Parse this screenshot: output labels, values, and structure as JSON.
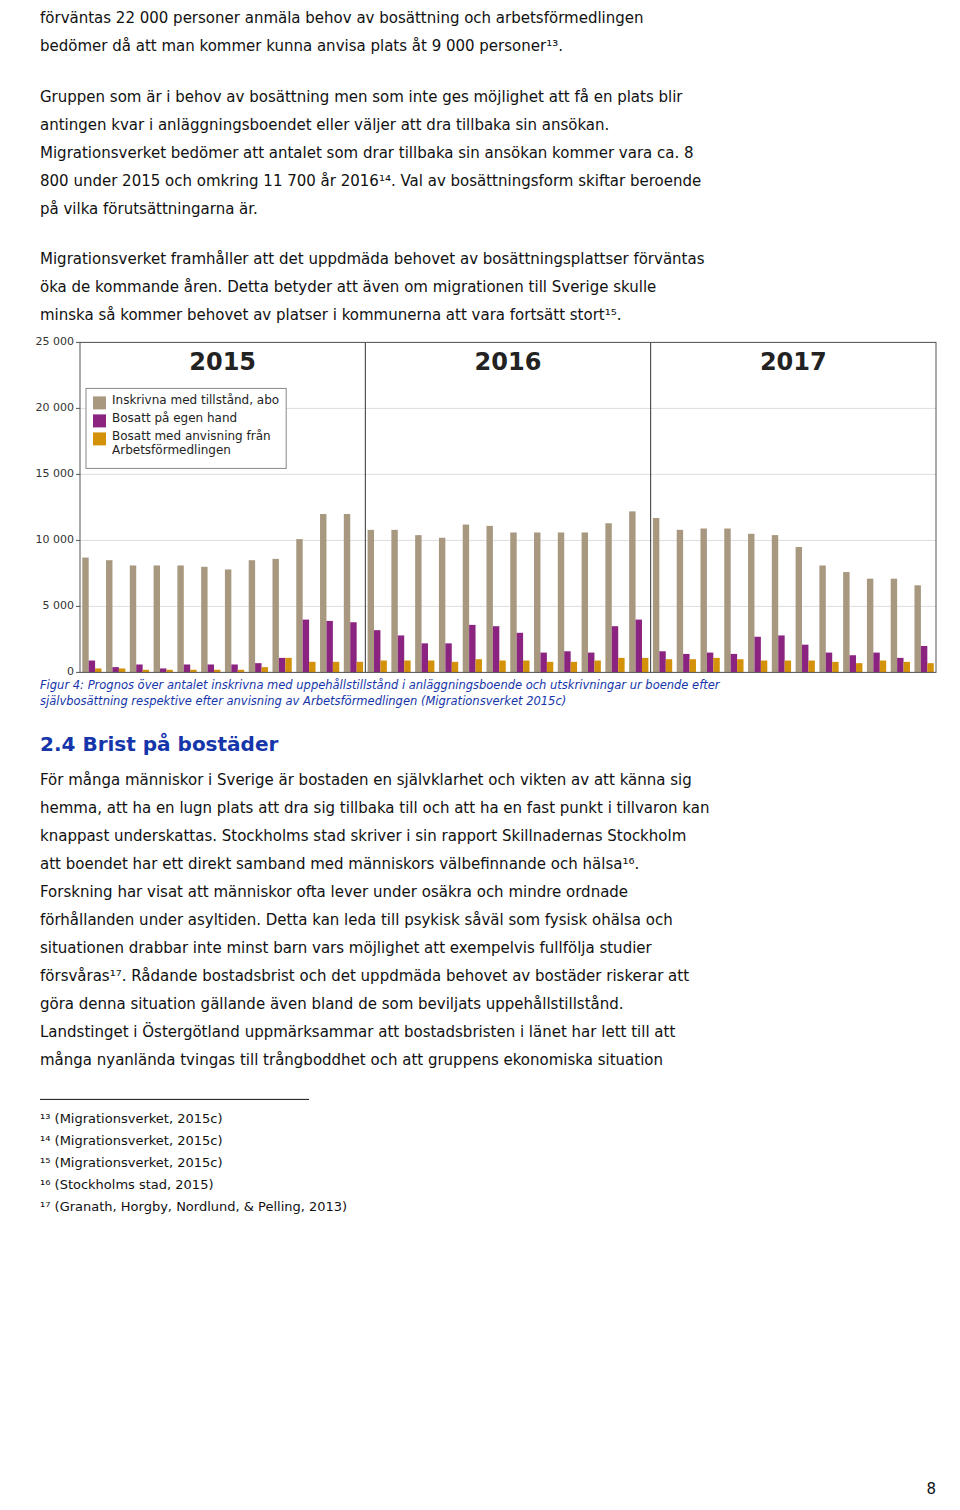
{
  "chart_data": {
    "type": "bar",
    "categories": [
      null,
      null,
      null,
      null,
      null,
      null,
      null,
      null,
      null,
      null,
      null,
      null,
      null,
      null,
      null,
      null,
      null,
      null,
      null,
      null,
      null,
      null,
      null,
      null,
      null,
      null,
      null,
      null,
      null,
      null,
      null,
      null,
      null,
      null,
      null,
      null
    ],
    "series": [
      {
        "name": "Inskrivna med tillstånd, abo",
        "color": "#A89880",
        "values": [
          8700,
          8500,
          8100,
          8100,
          8100,
          8000,
          7800,
          8500,
          8600,
          10100,
          12000,
          12000,
          10800,
          10800,
          10400,
          10200,
          11200,
          11100,
          10600,
          10600,
          10600,
          10600,
          11300,
          12200,
          11700,
          10800,
          10900,
          10900,
          10500,
          10400,
          9500,
          8100,
          7600,
          7100,
          7100,
          6600
        ]
      },
      {
        "name": "Bosatt på egen hand",
        "color": "#8B2480",
        "values": [
          900,
          400,
          600,
          300,
          600,
          600,
          600,
          700,
          1100,
          4000,
          3900,
          3800,
          3200,
          2800,
          2200,
          2200,
          3600,
          3500,
          3000,
          1500,
          1600,
          1500,
          3500,
          4000,
          1600,
          1400,
          1500,
          1400,
          2700,
          2800,
          2100,
          1500,
          1300,
          1500,
          1100,
          2000
        ]
      },
      {
        "name": "Bosatt med anvisning från\nArbetsförmedlingen",
        "color": "#D4920A",
        "values": [
          300,
          300,
          200,
          200,
          200,
          200,
          200,
          400,
          1100,
          800,
          800,
          800,
          900,
          900,
          900,
          800,
          1000,
          900,
          900,
          800,
          800,
          900,
          1100,
          1100,
          1000,
          1000,
          1100,
          1000,
          900,
          900,
          900,
          800,
          700,
          900,
          800,
          700
        ]
      }
    ],
    "annotations": [
      "2015",
      "2016",
      "2017"
    ],
    "ylim": [
      0,
      25000
    ],
    "yticks": [
      0,
      {
        "value": 5000,
        "label": "5 000"
      },
      {
        "value": 10000,
        "label": "10 000"
      },
      {
        "value": 15000,
        "label": "15 000"
      },
      {
        "value": 20000,
        "label": "20 000"
      },
      {
        "value": 25000,
        "label": "25 000"
      }
    ],
    "grid": true,
    "legend": "upper left",
    "tick_labels": "y"
  },
  "page_text": {
    "top": [
      [
        "förväntas 22 000 personer anmäla behov av bosättning och arbetsförmedlingen",
        "bedömer då att man kommer kunna anvisa plats åt 9 000 personer¹³."
      ],
      [
        "Gruppen som är i behov av bosättning men som inte ges möjlighet att få en plats blir",
        "antingen kvar i anläggningsboendet eller väljer att dra tillbaka sin ansökan.",
        "Migrationsverket bedömer att antalet som drar tillbaka sin ansökan kommer vara ca. 8",
        "800 under 2015 och omkring 11 700 år 2016¹⁴. Val av bosättningsform skiftar beroende",
        "på vilka förutsättningarna är."
      ],
      [
        "Migrationsverket framhåller att det uppdmäda behovet av bosättningsplattser förväntas",
        "öka de kommande åren. Detta betyder att även om migrationen till Sverige skulle",
        "minska så kommer behovet av platser i kommunerna att vara fortsätt stort¹⁵."
      ]
    ],
    "caption": [
      "Figur 4: Prognos över antalet inskrivna med uppehållstillstånd i anläggningsboende och utskrivningar ur boende efter",
      "självbosättning respektive efter anvisning av Arbetsförmedlingen (Migrationsverket 2015c)"
    ],
    "section_header": "2.4 Brist på bostäder",
    "body": [
      "För många människor i Sverige är bostaden en självklarhet och vikten av att känna sig",
      "hemma, att ha en lugn plats att dra sig tillbaka till och att ha en fast punkt i tillvaron kan",
      "knappast underskattas. Stockholms stad skriver i sin rapport Skillnadernas Stockholm",
      "att boendet har ett direkt samband med människors välbefinnande och hälsa¹⁶.",
      "Forskning har visat att människor ofta lever under osäkra och mindre ordnade",
      "förhållanden under asyltiden. Detta kan leda till psykisk såväl som fysisk ohälsa och",
      "situationen drabbar inte minst barn vars möjlighet att exempelvis fullfölja studier",
      "försvåras¹⁷. Rådande bostadsbrist och det uppdmäda behovet av bostäder riskerar att",
      "göra denna situation gällande även bland de som beviljats uppehållstillstånd.",
      "Landstinget i Östergötland uppmärksammar att bostadsbristen i länet har lett till att",
      "många nyanlända tvingas till trångboddhet och att gruppens ekonomiska situation"
    ],
    "footnotes": [
      "¹³ (Migrationsverket, 2015c)",
      "¹⁴ (Migrationsverket, 2015c)",
      "¹⁵ (Migrationsverket, 2015c)",
      "¹⁶ (Stockholms stad, 2015)",
      "¹⁷ (Granath, Horgby, Nordlund, & Pelling, 2013)"
    ],
    "page_number": "8"
  }
}
